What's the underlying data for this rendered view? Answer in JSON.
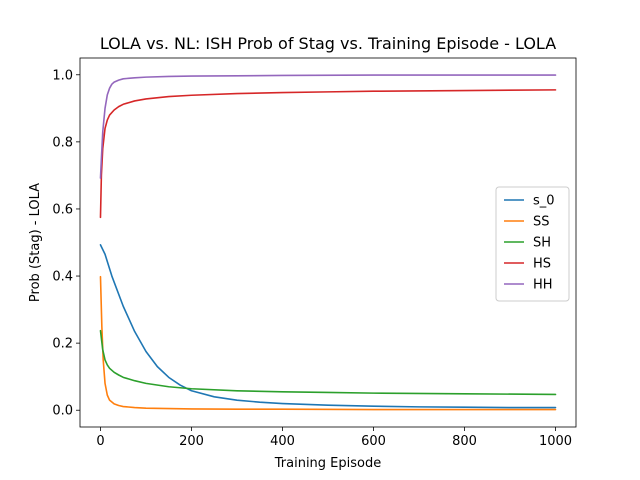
{
  "chart_data": {
    "type": "line",
    "title": "LOLA vs. NL: ISH Prob of Stag vs. Training Episode - LOLA",
    "xlabel": "Training Episode",
    "ylabel": "Prob (Stag) - LOLA",
    "xlim": [
      -45,
      1045
    ],
    "ylim": [
      -0.05,
      1.05
    ],
    "xticks": [
      0,
      200,
      400,
      600,
      800,
      1000
    ],
    "yticks": [
      0.0,
      0.2,
      0.4,
      0.6,
      0.8,
      1.0
    ],
    "xtick_labels": [
      "0",
      "200",
      "400",
      "600",
      "800",
      "1000"
    ],
    "ytick_labels": [
      "0.0",
      "0.2",
      "0.4",
      "0.6",
      "0.8",
      "1.0"
    ],
    "grid": false,
    "legend_position": "center-right",
    "series": [
      {
        "name": "s_0",
        "color": "#1f77b4",
        "x": [
          0,
          10,
          25,
          50,
          75,
          100,
          125,
          150,
          175,
          200,
          250,
          300,
          350,
          400,
          500,
          600,
          700,
          800,
          900,
          1000
        ],
        "y": [
          0.493,
          0.465,
          0.4,
          0.31,
          0.235,
          0.175,
          0.13,
          0.098,
          0.075,
          0.058,
          0.04,
          0.03,
          0.024,
          0.02,
          0.015,
          0.012,
          0.01,
          0.009,
          0.008,
          0.008
        ]
      },
      {
        "name": "SS",
        "color": "#ff7f0e",
        "x": [
          0,
          3,
          6,
          10,
          15,
          20,
          30,
          40,
          50,
          75,
          100,
          150,
          200,
          300,
          400,
          600,
          800,
          1000
        ],
        "y": [
          0.398,
          0.25,
          0.15,
          0.08,
          0.045,
          0.03,
          0.019,
          0.014,
          0.011,
          0.008,
          0.006,
          0.005,
          0.004,
          0.003,
          0.003,
          0.002,
          0.002,
          0.002
        ]
      },
      {
        "name": "SH",
        "color": "#2ca02c",
        "x": [
          0,
          5,
          10,
          15,
          20,
          30,
          40,
          50,
          75,
          100,
          150,
          200,
          300,
          400,
          500,
          600,
          800,
          1000
        ],
        "y": [
          0.237,
          0.18,
          0.15,
          0.135,
          0.125,
          0.113,
          0.105,
          0.098,
          0.088,
          0.08,
          0.07,
          0.064,
          0.058,
          0.055,
          0.053,
          0.051,
          0.049,
          0.047
        ]
      },
      {
        "name": "HS",
        "color": "#d62728",
        "x": [
          0,
          2,
          5,
          10,
          15,
          20,
          30,
          40,
          50,
          75,
          100,
          150,
          200,
          300,
          400,
          500,
          600,
          800,
          1000
        ],
        "y": [
          0.575,
          0.7,
          0.78,
          0.84,
          0.865,
          0.88,
          0.895,
          0.905,
          0.912,
          0.922,
          0.928,
          0.935,
          0.939,
          0.944,
          0.947,
          0.949,
          0.951,
          0.953,
          0.955
        ]
      },
      {
        "name": "HH",
        "color": "#9467bd",
        "x": [
          0,
          2,
          5,
          10,
          15,
          20,
          25,
          30,
          40,
          50,
          75,
          100,
          150,
          200,
          300,
          400,
          600,
          800,
          1000
        ],
        "y": [
          0.692,
          0.75,
          0.83,
          0.9,
          0.94,
          0.96,
          0.972,
          0.978,
          0.984,
          0.988,
          0.991,
          0.993,
          0.995,
          0.996,
          0.997,
          0.998,
          0.999,
          0.999,
          0.999
        ]
      }
    ]
  }
}
